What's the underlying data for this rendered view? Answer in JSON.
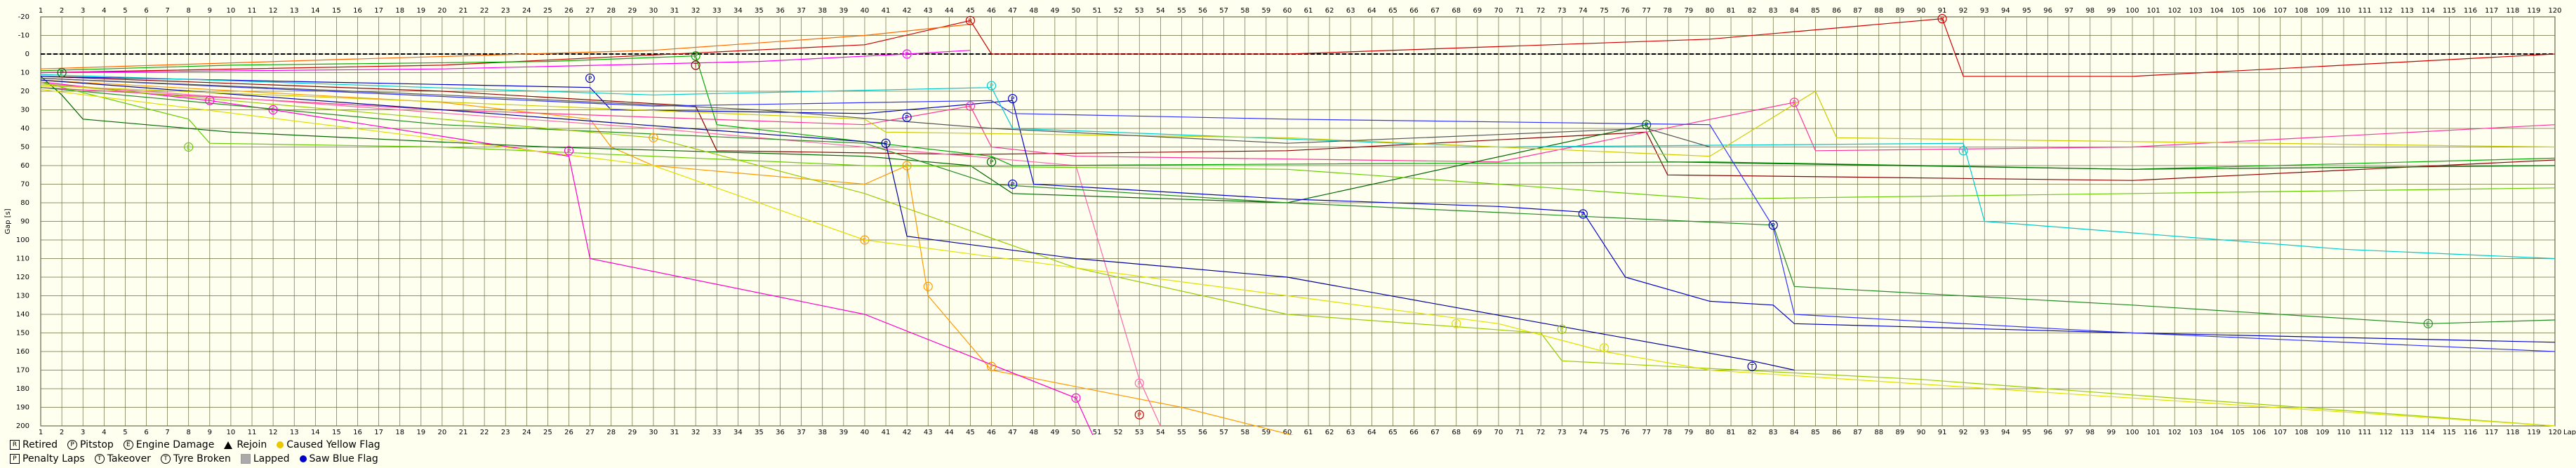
{
  "chart_data": {
    "type": "line",
    "ylabel": "Gap [s]",
    "xlabel": "Lap",
    "xlim": [
      1,
      120
    ],
    "ylim": [
      -20,
      200
    ],
    "y_ticks": [
      -20,
      -10,
      0,
      10,
      20,
      30,
      40,
      50,
      60,
      70,
      80,
      90,
      100,
      110,
      120,
      130,
      140,
      150,
      160,
      170,
      180,
      190,
      200
    ],
    "grid": true,
    "background": "#fffff0",
    "grid_color": "#6b6b3c",
    "series": [
      {
        "color": "#cc0000",
        "points": [
          [
            1,
            10
          ],
          [
            20,
            6
          ],
          [
            40,
            -5
          ],
          [
            45,
            -18
          ],
          [
            46,
            0
          ],
          [
            60,
            0
          ],
          [
            80,
            -8
          ],
          [
            91,
            -19
          ],
          [
            92,
            12
          ],
          [
            100,
            12
          ],
          [
            120,
            0
          ]
        ]
      },
      {
        "color": "#8b0000",
        "points": [
          [
            1,
            12
          ],
          [
            20,
            20
          ],
          [
            32,
            28
          ],
          [
            33,
            52
          ],
          [
            45,
            54
          ],
          [
            60,
            52
          ],
          [
            77,
            42
          ],
          [
            78,
            65
          ],
          [
            100,
            68
          ],
          [
            120,
            57
          ]
        ]
      },
      {
        "color": "#ff6600",
        "points": [
          [
            1,
            8
          ],
          [
            15,
            3
          ],
          [
            30,
            -2
          ],
          [
            40,
            -10
          ],
          [
            45,
            -16
          ]
        ]
      },
      {
        "color": "#ff9900",
        "points": [
          [
            1,
            14
          ],
          [
            20,
            26
          ],
          [
            27,
            35
          ],
          [
            28,
            50
          ],
          [
            30,
            60
          ],
          [
            40,
            70
          ],
          [
            42,
            60
          ],
          [
            43,
            130
          ],
          [
            46,
            170
          ],
          [
            55,
            190
          ],
          [
            62,
            210
          ]
        ]
      },
      {
        "color": "#ff00ff",
        "points": [
          [
            1,
            10
          ],
          [
            20,
            8
          ],
          [
            35,
            4
          ],
          [
            42,
            0
          ],
          [
            45,
            -2
          ]
        ]
      },
      {
        "color": "#ff00cc",
        "points": [
          [
            1,
            15
          ],
          [
            9,
            25
          ],
          [
            12,
            30
          ],
          [
            26,
            55
          ],
          [
            27,
            110
          ],
          [
            40,
            140
          ],
          [
            50,
            185
          ],
          [
            51,
            210
          ]
        ]
      },
      {
        "color": "#ff3399",
        "points": [
          [
            1,
            18
          ],
          [
            20,
            30
          ],
          [
            40,
            38
          ],
          [
            45,
            28
          ],
          [
            46,
            50
          ],
          [
            50,
            55
          ],
          [
            70,
            58
          ],
          [
            84,
            26
          ],
          [
            85,
            52
          ],
          [
            100,
            50
          ],
          [
            120,
            38
          ]
        ]
      },
      {
        "color": "#ff66aa",
        "points": [
          [
            1,
            16
          ],
          [
            30,
            40
          ],
          [
            50,
            60
          ],
          [
            53,
            175
          ],
          [
            54,
            200
          ]
        ]
      },
      {
        "color": "#00aa00",
        "points": [
          [
            1,
            9
          ],
          [
            10,
            6
          ],
          [
            25,
            4
          ],
          [
            32,
            1
          ],
          [
            33,
            38
          ],
          [
            46,
            55
          ],
          [
            47,
            60
          ],
          [
            80,
            58
          ],
          [
            100,
            62
          ],
          [
            120,
            56
          ]
        ]
      },
      {
        "color": "#006600",
        "points": [
          [
            1,
            12
          ],
          [
            2,
            22
          ],
          [
            3,
            35
          ],
          [
            10,
            42
          ],
          [
            25,
            50
          ],
          [
            40,
            55
          ],
          [
            45,
            60
          ],
          [
            47,
            75
          ],
          [
            60,
            80
          ],
          [
            77,
            38
          ],
          [
            78,
            58
          ],
          [
            100,
            62
          ],
          [
            120,
            60
          ]
        ]
      },
      {
        "color": "#228b22",
        "points": [
          [
            1,
            18
          ],
          [
            20,
            38
          ],
          [
            40,
            48
          ],
          [
            46,
            70
          ],
          [
            60,
            80
          ],
          [
            83,
            92
          ],
          [
            84,
            125
          ],
          [
            100,
            135
          ],
          [
            114,
            145
          ],
          [
            120,
            143
          ]
        ]
      },
      {
        "color": "#66cc00",
        "points": [
          [
            1,
            15
          ],
          [
            8,
            35
          ],
          [
            9,
            48
          ],
          [
            20,
            50
          ],
          [
            40,
            60
          ],
          [
            60,
            62
          ],
          [
            80,
            78
          ],
          [
            100,
            75
          ],
          [
            120,
            72
          ]
        ]
      },
      {
        "color": "#99cc00",
        "points": [
          [
            1,
            16
          ],
          [
            30,
            45
          ],
          [
            40,
            75
          ],
          [
            50,
            115
          ],
          [
            60,
            140
          ],
          [
            72,
            150
          ],
          [
            73,
            165
          ],
          [
            90,
            175
          ],
          [
            120,
            200
          ]
        ]
      },
      {
        "color": "#0000cc",
        "points": [
          [
            1,
            12
          ],
          [
            27,
            18
          ],
          [
            28,
            30
          ],
          [
            40,
            32
          ],
          [
            47,
            25
          ],
          [
            48,
            70
          ],
          [
            60,
            78
          ],
          [
            70,
            82
          ],
          [
            74,
            85
          ],
          [
            76,
            120
          ],
          [
            80,
            133
          ],
          [
            83,
            135
          ],
          [
            84,
            145
          ],
          [
            100,
            150
          ],
          [
            120,
            155
          ]
        ]
      },
      {
        "color": "#000099",
        "points": [
          [
            1,
            14
          ],
          [
            20,
            30
          ],
          [
            41,
            48
          ],
          [
            42,
            98
          ],
          [
            50,
            110
          ],
          [
            60,
            120
          ],
          [
            82,
            165
          ],
          [
            84,
            170
          ]
        ]
      },
      {
        "color": "#3333ff",
        "points": [
          [
            1,
            13
          ],
          [
            30,
            28
          ],
          [
            46,
            25
          ],
          [
            47,
            32
          ],
          [
            60,
            35
          ],
          [
            80,
            38
          ],
          [
            83,
            93
          ],
          [
            84,
            140
          ],
          [
            100,
            150
          ],
          [
            120,
            160
          ]
        ]
      },
      {
        "color": "#00cccc",
        "points": [
          [
            1,
            11
          ],
          [
            30,
            22
          ],
          [
            46,
            18
          ],
          [
            47,
            40
          ],
          [
            70,
            50
          ],
          [
            92,
            48
          ],
          [
            93,
            90
          ],
          [
            110,
            105
          ],
          [
            120,
            110
          ]
        ]
      },
      {
        "color": "#cccc00",
        "points": [
          [
            1,
            17
          ],
          [
            40,
            35
          ],
          [
            41,
            42
          ],
          [
            60,
            45
          ],
          [
            80,
            55
          ],
          [
            85,
            20
          ],
          [
            86,
            45
          ],
          [
            120,
            50
          ]
        ]
      },
      {
        "color": "#e0e000",
        "points": [
          [
            1,
            19
          ],
          [
            30,
            60
          ],
          [
            40,
            100
          ],
          [
            60,
            130
          ],
          [
            70,
            145
          ],
          [
            75,
            160
          ],
          [
            80,
            170
          ],
          [
            100,
            185
          ],
          [
            120,
            200
          ]
        ]
      },
      {
        "color": "#555555",
        "points": [
          [
            1,
            13
          ],
          [
            20,
            22
          ],
          [
            35,
            30
          ],
          [
            46,
            40
          ],
          [
            60,
            48
          ],
          [
            77,
            40
          ],
          [
            80,
            50
          ]
        ]
      }
    ],
    "markers": [
      {
        "lap": 45,
        "y": -18,
        "sym": "R",
        "color": "#cc0000"
      },
      {
        "lap": 91,
        "y": -19,
        "sym": "R",
        "color": "#cc0000"
      },
      {
        "lap": 42,
        "y": 0,
        "sym": "P",
        "color": "#ff00ff"
      },
      {
        "lap": 32,
        "y": 1,
        "sym": "P",
        "color": "#00aa00"
      },
      {
        "lap": 32,
        "y": 6,
        "sym": "T",
        "color": "#8b0000"
      },
      {
        "lap": 2,
        "y": 10,
        "sym": "P",
        "color": "#006600"
      },
      {
        "lap": 27,
        "y": 13,
        "sym": "P",
        "color": "#0000cc"
      },
      {
        "lap": 46,
        "y": 17,
        "sym": "P",
        "color": "#00cccc"
      },
      {
        "lap": 9,
        "y": 25,
        "sym": "E",
        "color": "#ff00cc"
      },
      {
        "lap": 12,
        "y": 30,
        "sym": "E",
        "color": "#ff00cc"
      },
      {
        "lap": 47,
        "y": 24,
        "sym": "P",
        "color": "#0000cc"
      },
      {
        "lap": 45,
        "y": 28,
        "sym": "P",
        "color": "#ff3399"
      },
      {
        "lap": 84,
        "y": 26,
        "sym": "P",
        "color": "#ff3399"
      },
      {
        "lap": 42,
        "y": 34,
        "sym": "P",
        "color": "#0000cc"
      },
      {
        "lap": 77,
        "y": 38,
        "sym": "P",
        "color": "#006600"
      },
      {
        "lap": 41,
        "y": 48,
        "sym": "P",
        "color": "#000099"
      },
      {
        "lap": 26,
        "y": 52,
        "sym": "P",
        "color": "#ff00cc"
      },
      {
        "lap": 8,
        "y": 50,
        "sym": "E",
        "color": "#66cc00"
      },
      {
        "lap": 30,
        "y": 45,
        "sym": "E",
        "color": "#ff9900"
      },
      {
        "lap": 46,
        "y": 58,
        "sym": "P",
        "color": "#006600"
      },
      {
        "lap": 92,
        "y": 52,
        "sym": "P",
        "color": "#00cccc"
      },
      {
        "lap": 42,
        "y": 60,
        "sym": "P",
        "color": "#ff9900"
      },
      {
        "lap": 47,
        "y": 70,
        "sym": "P",
        "color": "#0000cc"
      },
      {
        "lap": 74,
        "y": 86,
        "sym": "P",
        "color": "#0000cc"
      },
      {
        "lap": 83,
        "y": 92,
        "sym": "P",
        "color": "#000099"
      },
      {
        "lap": 40,
        "y": 100,
        "sym": "E",
        "color": "#ff9900"
      },
      {
        "lap": 43,
        "y": 125,
        "sym": "T",
        "color": "#ff9900"
      },
      {
        "lap": 68,
        "y": 145,
        "sym": "E",
        "color": "#e0e000"
      },
      {
        "lap": 73,
        "y": 148,
        "sym": "E",
        "color": "#99cc00"
      },
      {
        "lap": 75,
        "y": 158,
        "sym": "E",
        "color": "#e0e000"
      },
      {
        "lap": 114,
        "y": 145,
        "sym": "E",
        "color": "#228b22"
      },
      {
        "lap": 46,
        "y": 168,
        "sym": "P",
        "color": "#ff9900"
      },
      {
        "lap": 82,
        "y": 168,
        "sym": "T",
        "color": "#000099"
      },
      {
        "lap": 53,
        "y": 177,
        "sym": "P",
        "color": "#ff66aa"
      },
      {
        "lap": 50,
        "y": 185,
        "sym": "P",
        "color": "#ff00cc"
      },
      {
        "lap": 53,
        "y": 194,
        "sym": "P",
        "color": "#cc0000"
      }
    ]
  },
  "legend": {
    "row1": [
      {
        "sym": "R",
        "shape": "square",
        "label": "Retired"
      },
      {
        "sym": "P",
        "shape": "circle",
        "label": "Pitstop"
      },
      {
        "sym": "E",
        "shape": "circle",
        "label": "Engine Damage"
      },
      {
        "sym": "",
        "shape": "triangle",
        "label": "Rejoin"
      },
      {
        "sym": "",
        "shape": "dot-yellow",
        "label": "Caused Yellow Flag"
      }
    ],
    "row2": [
      {
        "sym": "P",
        "shape": "square",
        "label": "Penalty Laps"
      },
      {
        "sym": "T",
        "shape": "circle",
        "label": "Takeover"
      },
      {
        "sym": "T",
        "shape": "circle",
        "label": "Tyre Broken"
      },
      {
        "sym": "",
        "shape": "grey",
        "label": "Lapped"
      },
      {
        "sym": "",
        "shape": "dot-blue",
        "label": "Saw Blue Flag"
      }
    ]
  }
}
